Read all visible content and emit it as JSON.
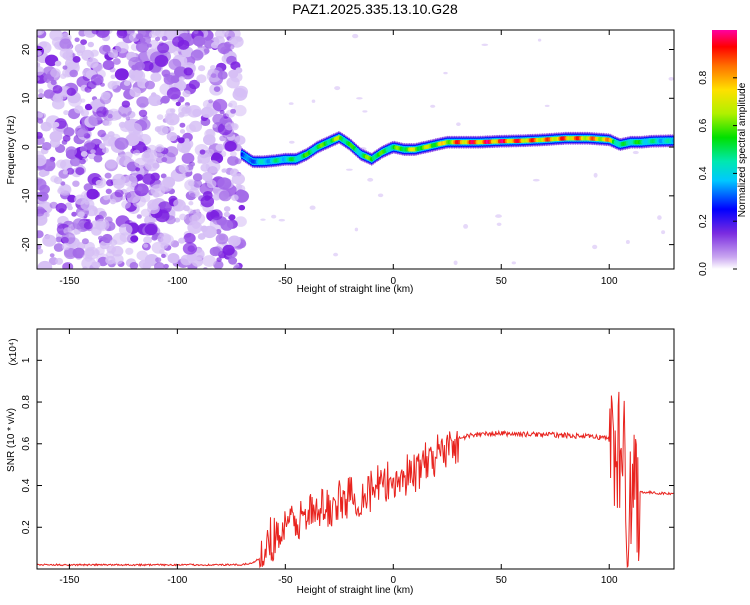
{
  "title": "PAZ1.2025.335.13.10.G28",
  "colors": {
    "noise_purple": "#8a2be2",
    "snr_line": "#e8231e",
    "ridge_red": "#ff0000",
    "ridge_cyan": "#00c8ff"
  },
  "chart_data": [
    {
      "type": "heatmap",
      "name": "spectrogram",
      "xlabel": "Height of straight line (km)",
      "ylabel": "Frequency (Hz)",
      "xlim": [
        -165,
        130
      ],
      "ylim": [
        -25,
        24
      ],
      "xticks": [
        -150,
        -100,
        -50,
        0,
        50,
        100
      ],
      "yticks": [
        -20,
        -10,
        0,
        10,
        20
      ],
      "colorbar": {
        "label": "Normalized spectral amplitude",
        "range": [
          0.0,
          1.0
        ],
        "ticks": [
          0.0,
          0.2,
          0.4,
          0.6,
          0.8
        ]
      },
      "noise_region_x": [
        -165,
        -70
      ],
      "ridge": {
        "x": [
          -70,
          -65,
          -60,
          -55,
          -50,
          -45,
          -40,
          -35,
          -30,
          -25,
          -20,
          -15,
          -10,
          -5,
          0,
          5,
          10,
          15,
          20,
          25,
          30,
          40,
          50,
          60,
          70,
          80,
          90,
          100,
          105,
          110,
          115,
          120,
          130
        ],
        "freq": [
          -1.5,
          -3,
          -3,
          -2.8,
          -2.5,
          -2.5,
          -1.5,
          0,
          1,
          2,
          0.5,
          -1.5,
          -2.5,
          -1,
          0,
          -0.5,
          -0.5,
          0,
          0.5,
          1,
          1,
          1,
          1.2,
          1.3,
          1.5,
          1.8,
          1.8,
          1.5,
          0.5,
          1.0,
          1.0,
          1.2,
          1.3
        ],
        "amplitude": [
          0.3,
          0.4,
          0.45,
          0.5,
          0.5,
          0.55,
          0.6,
          0.6,
          0.65,
          0.7,
          0.6,
          0.55,
          0.7,
          0.6,
          0.6,
          0.7,
          0.75,
          0.7,
          0.75,
          0.8,
          0.95,
          1.0,
          1.0,
          0.95,
          0.9,
          0.95,
          0.9,
          0.85,
          0.5,
          0.6,
          0.55,
          0.5,
          0.45
        ]
      }
    },
    {
      "type": "line",
      "name": "snr",
      "xlabel": "Height of straight line (km)",
      "ylabel": "SNR (10 * v/v)",
      "y_exponent_label": "(x10⁴)",
      "xlim": [
        -165,
        130
      ],
      "ylim": [
        0,
        1.15
      ],
      "xticks": [
        -150,
        -100,
        -50,
        0,
        50,
        100
      ],
      "yticks": [
        0.2,
        0.4,
        0.6,
        0.8,
        1.0
      ],
      "series": [
        {
          "name": "SNR",
          "x": [
            -165,
            -140,
            -120,
            -100,
            -80,
            -70,
            -65,
            -62,
            -60,
            -58,
            -55,
            -50,
            -45,
            -40,
            -35,
            -30,
            -25,
            -20,
            -15,
            -10,
            -5,
            0,
            5,
            10,
            15,
            20,
            25,
            30,
            35,
            40,
            50,
            60,
            70,
            80,
            90,
            98,
            100,
            103,
            105,
            107,
            108,
            110,
            112,
            114,
            120,
            130
          ],
          "y": [
            0.02,
            0.02,
            0.02,
            0.02,
            0.02,
            0.02,
            0.03,
            0.05,
            0.1,
            0.14,
            0.16,
            0.2,
            0.22,
            0.25,
            0.27,
            0.3,
            0.31,
            0.34,
            0.35,
            0.38,
            0.4,
            0.42,
            0.44,
            0.47,
            0.5,
            0.55,
            0.59,
            0.62,
            0.64,
            0.645,
            0.65,
            0.645,
            0.645,
            0.64,
            0.635,
            0.63,
            0.62,
            0.6,
            0.55,
            0.48,
            0.3,
            0.4,
            0.38,
            0.37,
            0.365,
            0.36
          ]
        }
      ]
    }
  ]
}
